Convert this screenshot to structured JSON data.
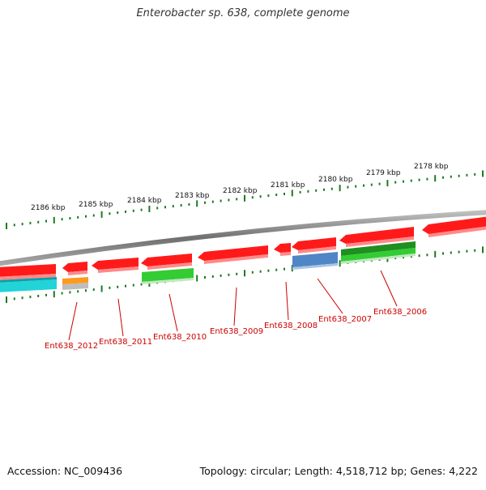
{
  "title": "Enterobacter sp. 638, complete genome",
  "footer": {
    "accession": "Accession: NC_009436",
    "summary": "Topology: circular; Length: 4,518,712 bp; Genes: 4,222"
  },
  "colors": {
    "backbone": "#8a8a8a",
    "tick": "#1f7a1f",
    "label": "#cc0000",
    "gene_red": "#ff1a1a",
    "gene_cyan": "#22d3d8",
    "gene_orange": "#ff9a1a",
    "gene_gray": "#bdbdbd",
    "gene_green": "#33cc33",
    "gene_darkgreen": "#1f8f1f",
    "gene_blue": "#4f86c6"
  },
  "scale_labels": [
    "2186 kbp",
    "2185 kbp",
    "2184 kbp",
    "2183 kbp",
    "2182 kbp",
    "2181 kbp",
    "2180 kbp",
    "2179 kbp",
    "2178 kbp"
  ],
  "gene_labels": [
    "Ent638_2012",
    "Ent638_2011",
    "Ent638_2010",
    "Ent638_2009",
    "Ent638_2008",
    "Ent638_2007",
    "Ent638_2006"
  ]
}
